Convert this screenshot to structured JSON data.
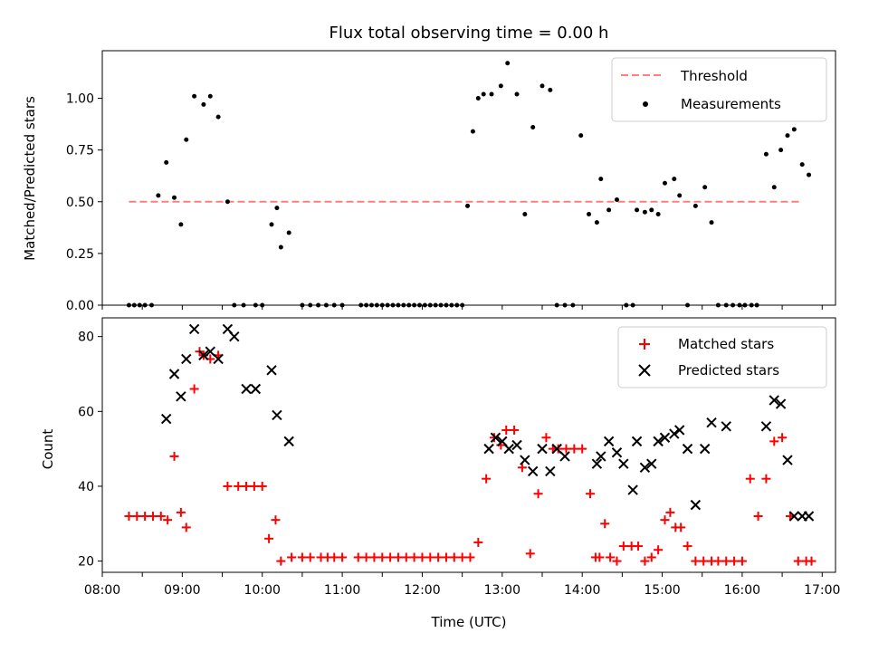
{
  "chart_data": [
    {
      "type": "scatter",
      "title": "Flux total observing time = 0.00 h",
      "ylabel": "Matched/Predicted stars",
      "xlabel": "",
      "xlim": [
        "08:00",
        "17:10"
      ],
      "ylim": [
        0.0,
        1.23
      ],
      "yticks": [
        "0.00",
        "0.25",
        "0.50",
        "0.75",
        "1.00"
      ],
      "xticks": [
        "08:00",
        "09:00",
        "10:00",
        "11:00",
        "12:00",
        "13:00",
        "14:00",
        "15:00",
        "16:00",
        "17:00"
      ],
      "show_tick_labels_x": false,
      "legend": {
        "placement": "top-right",
        "entries": [
          "Threshold",
          "Measurements"
        ]
      },
      "colors": {
        "threshold": "#ff7f7f",
        "measurements": "#000000"
      },
      "threshold": {
        "name": "Threshold",
        "y": 0.5,
        "x": [
          "08:20",
          "16:45"
        ]
      },
      "series": [
        {
          "name": "Measurements",
          "marker": "dot",
          "x": [
            "08:20",
            "08:24",
            "08:28",
            "08:32",
            "08:37",
            "08:42",
            "08:48",
            "08:54",
            "08:59",
            "09:03",
            "09:09",
            "09:16",
            "09:21",
            "09:27",
            "09:34",
            "09:39",
            "09:46",
            "09:55",
            "10:00",
            "10:07",
            "10:11",
            "10:14",
            "10:20",
            "10:30",
            "10:36",
            "10:42",
            "10:48",
            "10:54",
            "11:00",
            "11:14",
            "11:18",
            "11:22",
            "11:26",
            "11:30",
            "11:34",
            "11:38",
            "11:42",
            "11:46",
            "11:50",
            "11:54",
            "11:58",
            "12:02",
            "12:06",
            "12:10",
            "12:14",
            "12:18",
            "12:22",
            "12:26",
            "12:30",
            "12:34",
            "12:38",
            "12:42",
            "12:46",
            "12:52",
            "12:59",
            "13:04",
            "13:11",
            "13:17",
            "13:23",
            "13:30",
            "13:36",
            "13:41",
            "13:47",
            "13:53",
            "13:59",
            "14:05",
            "14:11",
            "14:14",
            "14:20",
            "14:26",
            "14:33",
            "14:38",
            "14:41",
            "14:47",
            "14:52",
            "14:57",
            "15:02",
            "15:09",
            "15:13",
            "15:19",
            "15:25",
            "15:32",
            "15:37",
            "15:42",
            "15:48",
            "15:53",
            "15:58",
            "16:02",
            "16:07",
            "16:11",
            "16:18",
            "16:24",
            "16:29",
            "16:34",
            "16:39",
            "16:45",
            "16:50"
          ],
          "y": [
            0.0,
            0.0,
            0.0,
            0.0,
            0.0,
            0.53,
            0.69,
            0.52,
            0.39,
            0.8,
            1.01,
            0.97,
            1.01,
            0.91,
            0.5,
            0.0,
            0.0,
            0.0,
            0.0,
            0.39,
            0.47,
            0.28,
            0.35,
            0.0,
            0.0,
            0.0,
            0.0,
            0.0,
            0.0,
            0.0,
            0.0,
            0.0,
            0.0,
            0.0,
            0.0,
            0.0,
            0.0,
            0.0,
            0.0,
            0.0,
            0.0,
            0.0,
            0.0,
            0.0,
            0.0,
            0.0,
            0.0,
            0.0,
            0.0,
            0.48,
            0.84,
            1.0,
            1.02,
            1.02,
            1.06,
            1.17,
            1.02,
            0.44,
            0.86,
            1.06,
            1.04,
            0.0,
            0.0,
            0.0,
            0.82,
            0.44,
            0.4,
            0.61,
            0.46,
            0.51,
            0.0,
            0.0,
            0.46,
            0.45,
            0.46,
            0.44,
            0.59,
            0.61,
            0.53,
            0.0,
            0.48,
            0.57,
            0.4,
            0.0,
            0.0,
            0.0,
            0.0,
            0.0,
            0.0,
            0.0,
            0.73,
            0.57,
            0.75,
            0.82,
            0.85,
            0.68,
            0.63
          ]
        }
      ]
    },
    {
      "type": "scatter",
      "title": "",
      "ylabel": "Count",
      "xlabel": "Time (UTC)",
      "xlim": [
        "08:00",
        "17:10"
      ],
      "ylim": [
        17,
        85
      ],
      "yticks": [
        "20",
        "40",
        "60",
        "80"
      ],
      "xticks": [
        "08:00",
        "09:00",
        "10:00",
        "11:00",
        "12:00",
        "13:00",
        "14:00",
        "15:00",
        "16:00",
        "17:00"
      ],
      "show_tick_labels_x": true,
      "legend": {
        "placement": "top-right",
        "entries": [
          "Matched stars",
          "Predicted stars"
        ]
      },
      "colors": {
        "matched": "#ff0000",
        "predicted": "#000000"
      },
      "series": [
        {
          "name": "Matched stars",
          "marker": "plus",
          "x": [
            "08:20",
            "08:26",
            "08:32",
            "08:38",
            "08:44",
            "08:49",
            "08:54",
            "08:59",
            "09:03",
            "09:09",
            "09:13",
            "09:16",
            "09:21",
            "09:27",
            "09:34",
            "09:42",
            "09:48",
            "09:54",
            "10:00",
            "10:05",
            "10:10",
            "10:14",
            "10:22",
            "10:30",
            "10:36",
            "10:44",
            "10:49",
            "10:54",
            "11:00",
            "11:12",
            "11:18",
            "11:24",
            "11:30",
            "11:36",
            "11:42",
            "11:48",
            "11:54",
            "12:00",
            "12:06",
            "12:12",
            "12:18",
            "12:24",
            "12:30",
            "12:36",
            "12:42",
            "12:48",
            "12:54",
            "12:59",
            "13:03",
            "13:09",
            "13:15",
            "13:21",
            "13:27",
            "13:33",
            "13:38",
            "13:42",
            "13:48",
            "13:54",
            "14:00",
            "14:06",
            "14:10",
            "14:13",
            "14:17",
            "14:21",
            "14:26",
            "14:31",
            "14:37",
            "14:42",
            "14:47",
            "14:52",
            "14:57",
            "15:02",
            "15:06",
            "15:10",
            "15:14",
            "15:19",
            "15:25",
            "15:31",
            "15:37",
            "15:42",
            "15:48",
            "15:54",
            "16:00",
            "16:06",
            "16:12",
            "16:18",
            "16:24",
            "16:30",
            "16:36",
            "16:42",
            "16:48",
            "16:52"
          ],
          "y": [
            32,
            32,
            32,
            32,
            32,
            31,
            48,
            33,
            29,
            66,
            76,
            75,
            74,
            75,
            40,
            40,
            40,
            40,
            40,
            26,
            31,
            20,
            21,
            21,
            21,
            21,
            21,
            21,
            21,
            21,
            21,
            21,
            21,
            21,
            21,
            21,
            21,
            21,
            21,
            21,
            21,
            21,
            21,
            21,
            25,
            42,
            53,
            51,
            55,
            55,
            45,
            22,
            38,
            53,
            50,
            50,
            50,
            50,
            50,
            38,
            21,
            21,
            30,
            21,
            20,
            24,
            24,
            24,
            20,
            21,
            23,
            31,
            33,
            29,
            29,
            24,
            20,
            20,
            20,
            20,
            20,
            20,
            20,
            42,
            32,
            42,
            52,
            53,
            32,
            20,
            20,
            20
          ],
          "note_x_subset_matches_y": true
        },
        {
          "name": "Predicted stars",
          "marker": "x",
          "x": [
            "08:48",
            "08:54",
            "08:59",
            "09:03",
            "09:09",
            "09:16",
            "09:21",
            "09:27",
            "09:34",
            "09:39",
            "09:48",
            "09:55",
            "10:07",
            "10:11",
            "10:20",
            "12:50",
            "12:55",
            "13:00",
            "13:05",
            "13:11",
            "13:17",
            "13:23",
            "13:30",
            "13:36",
            "13:41",
            "13:47",
            "14:11",
            "14:14",
            "14:20",
            "14:26",
            "14:31",
            "14:38",
            "14:41",
            "14:47",
            "14:52",
            "14:57",
            "15:02",
            "15:09",
            "15:13",
            "15:19",
            "15:25",
            "15:32",
            "15:37",
            "15:48",
            "16:18",
            "16:24",
            "16:29",
            "16:34",
            "16:39",
            "16:45",
            "16:50"
          ],
          "y": [
            58,
            70,
            64,
            74,
            82,
            75,
            76,
            74,
            82,
            80,
            66,
            66,
            71,
            59,
            52,
            50,
            53,
            52,
            50,
            51,
            47,
            44,
            50,
            44,
            50,
            48,
            46,
            48,
            52,
            49,
            46,
            39,
            52,
            45,
            46,
            52,
            53,
            54,
            55,
            50,
            35,
            50,
            57,
            56,
            56,
            63,
            62,
            47,
            32,
            32,
            32
          ]
        }
      ]
    }
  ]
}
